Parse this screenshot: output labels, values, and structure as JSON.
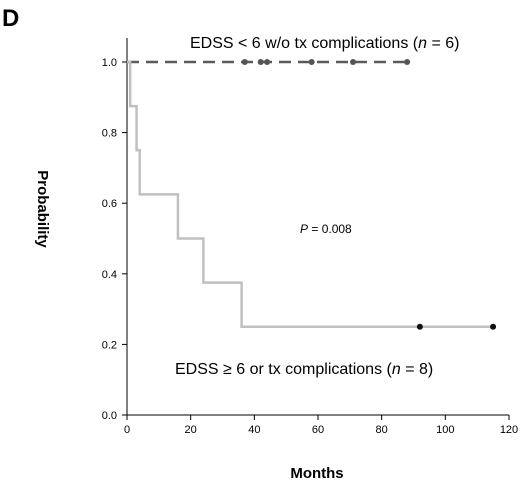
{
  "panel_label": "D",
  "chart_data": {
    "type": "line",
    "subtype": "kaplan-meier",
    "xlabel": "Months",
    "ylabel": "Probability",
    "xlim": [
      0,
      120
    ],
    "ylim": [
      0,
      1.0
    ],
    "x_ticks": [
      "0",
      "20",
      "40",
      "60",
      "80",
      "100",
      "120"
    ],
    "y_ticks": [
      "0.0",
      "0.2",
      "0.4",
      "0.6",
      "0.8",
      "1.0"
    ],
    "grid": false,
    "series": [
      {
        "label_parts": [
          "EDSS < 6 w/o tx complications (",
          "n",
          " = 6)"
        ],
        "style": "dashed",
        "color": "#5a5a5a",
        "steps": [
          [
            0,
            1.0
          ],
          [
            88,
            1.0
          ]
        ],
        "censored": [
          [
            37,
            1.0
          ],
          [
            42,
            1.0
          ],
          [
            44,
            1.0
          ],
          [
            58,
            1.0
          ],
          [
            71,
            1.0
          ],
          [
            88,
            1.0
          ]
        ]
      },
      {
        "label_parts": [
          "EDSS ≥ 6 or tx complications (",
          "n",
          " = 8)"
        ],
        "style": "solid",
        "color": "#c0c0c0",
        "steps": [
          [
            0,
            1.0
          ],
          [
            1,
            0.875
          ],
          [
            3,
            0.75
          ],
          [
            4,
            0.625
          ],
          [
            16,
            0.5
          ],
          [
            24,
            0.375
          ],
          [
            36,
            0.25
          ],
          [
            115,
            0.25
          ]
        ],
        "censored": [
          [
            92,
            0.25
          ],
          [
            115,
            0.25
          ]
        ]
      }
    ],
    "annotations": [
      {
        "parts": [
          "P",
          " = 0.008"
        ],
        "x": 0,
        "y": 0
      }
    ]
  }
}
